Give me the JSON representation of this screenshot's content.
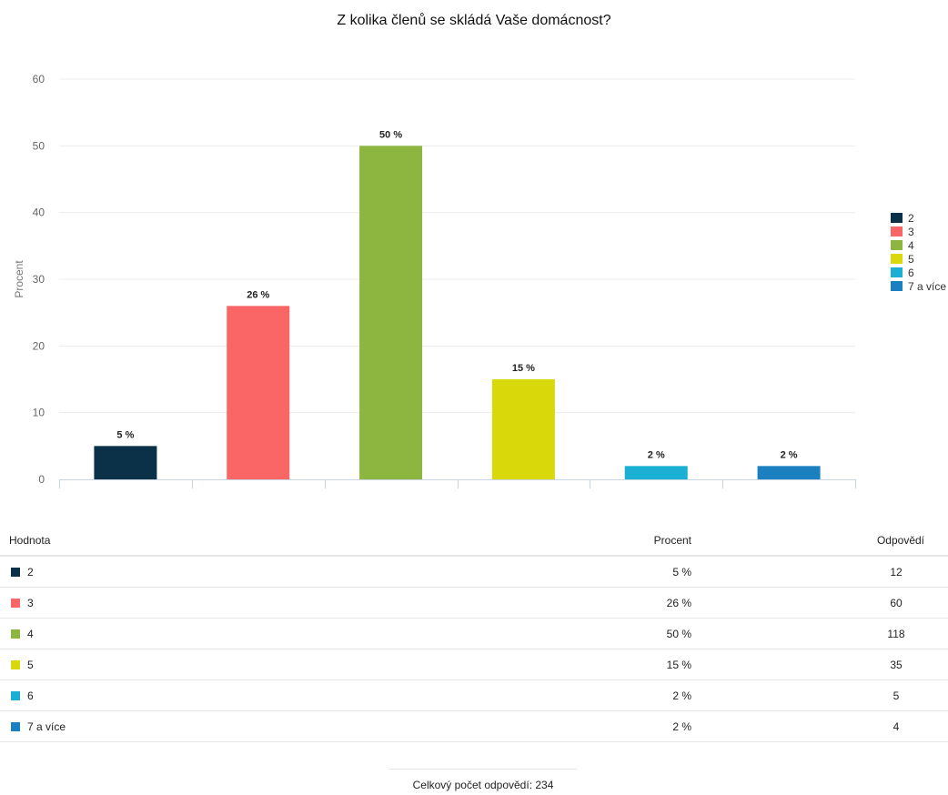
{
  "chart_data": {
    "type": "bar",
    "title": "Z kolika členů se skládá Vaše domácnost?",
    "ylabel": "Procent",
    "xlabel": "",
    "ylim": [
      0,
      60
    ],
    "yticks": [
      "0",
      "10",
      "20",
      "30",
      "40",
      "50",
      "60"
    ],
    "grid": true,
    "legend": "right",
    "categories": [
      "2",
      "3",
      "4",
      "5",
      "6",
      "7 a více"
    ],
    "values": [
      5,
      26,
      50,
      15,
      2,
      2
    ],
    "data_labels": [
      "5 %",
      "26 %",
      "50 %",
      "15 %",
      "2 %",
      "2 %"
    ],
    "colors": [
      "#0b3148",
      "#f96665",
      "#8db640",
      "#d8d80b",
      "#1ab0d4",
      "#1a80c0"
    ]
  },
  "table": {
    "headers": {
      "value": "Hodnota",
      "percent": "Procent",
      "count": "Odpovědí"
    },
    "rows": [
      {
        "value": "2",
        "percent": "5 %",
        "count": "12"
      },
      {
        "value": "3",
        "percent": "26 %",
        "count": "60"
      },
      {
        "value": "4",
        "percent": "50 %",
        "count": "118"
      },
      {
        "value": "5",
        "percent": "15 %",
        "count": "35"
      },
      {
        "value": "6",
        "percent": "2 %",
        "count": "5"
      },
      {
        "value": "7 a více",
        "percent": "2 %",
        "count": "4"
      }
    ]
  },
  "total": {
    "label": "Celkový počet odpovědí: 234"
  }
}
